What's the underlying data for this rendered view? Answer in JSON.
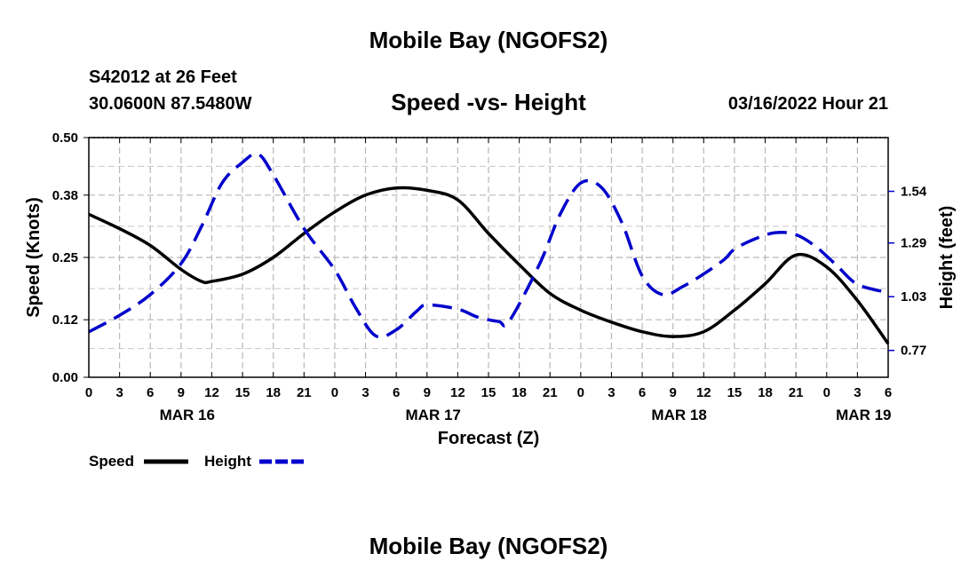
{
  "header": {
    "title": "Mobile Bay (NGOFS2)",
    "station": "S42012 at 26 Feet",
    "coordinates": "30.0600N  87.5480W",
    "subtitle": "Speed -vs- Height",
    "datetime": "03/16/2022 Hour 21"
  },
  "footer": {
    "title": "Mobile Bay (NGOFS2)"
  },
  "chart_data": {
    "type": "line",
    "xlabel": "Forecast (Z)",
    "ylabel_left": "Speed (Knots)",
    "ylabel_right": "Height (feet)",
    "x_unit": "hours from MAR 16 00Z",
    "xlim": [
      0,
      78
    ],
    "x_ticks": [
      0,
      3,
      6,
      9,
      12,
      15,
      18,
      21,
      24,
      27,
      30,
      33,
      36,
      39,
      42,
      45,
      48,
      51,
      54,
      57,
      60,
      63,
      66,
      69,
      72,
      75,
      78
    ],
    "x_tick_labels": [
      "0",
      "3",
      "6",
      "9",
      "12",
      "15",
      "18",
      "21",
      "0",
      "3",
      "6",
      "9",
      "12",
      "15",
      "18",
      "21",
      "0",
      "3",
      "6",
      "9",
      "12",
      "15",
      "18",
      "21",
      "0",
      "3",
      "6"
    ],
    "date_labels": [
      {
        "label": "MAR 16",
        "x": 9.6
      },
      {
        "label": "MAR 17",
        "x": 33.6
      },
      {
        "label": "MAR 18",
        "x": 57.6
      },
      {
        "label": "MAR 19",
        "x": 75.6
      }
    ],
    "ylim_left": [
      0,
      0.5
    ],
    "y_ticks_left": [
      0.0,
      0.12,
      0.25,
      0.38,
      0.5
    ],
    "y_tick_labels_left": [
      "0.00",
      "0.12",
      "0.25",
      "0.38",
      "0.50"
    ],
    "ylim_right": [
      0.64,
      1.8
    ],
    "y_ticks_right": [
      0.77,
      1.03,
      1.29,
      1.54
    ],
    "y_tick_labels_right": [
      "0.77",
      "1.03",
      "1.29",
      "1.54"
    ],
    "grid": true,
    "series": [
      {
        "name": "Speed",
        "axis": "left",
        "color": "#000000",
        "dash": "solid",
        "x": [
          0,
          3,
          6,
          9,
          11,
          12,
          15,
          18,
          21,
          24,
          27,
          30,
          33,
          36,
          39,
          42,
          45,
          48,
          51,
          54,
          57,
          60,
          63,
          66,
          69,
          72,
          75,
          78
        ],
        "values": [
          0.34,
          0.31,
          0.275,
          0.225,
          0.2,
          0.2,
          0.215,
          0.25,
          0.3,
          0.345,
          0.38,
          0.395,
          0.39,
          0.37,
          0.3,
          0.235,
          0.175,
          0.14,
          0.115,
          0.095,
          0.085,
          0.095,
          0.14,
          0.195,
          0.255,
          0.23,
          0.16,
          0.07
        ]
      },
      {
        "name": "Height",
        "axis": "right",
        "color": "#0000cc",
        "dash": "dashed",
        "x": [
          0,
          3,
          6,
          9,
          11,
          13,
          15,
          16.5,
          18,
          21,
          24,
          26,
          28,
          30,
          32,
          33,
          36,
          38,
          40,
          41,
          44,
          46,
          48,
          50,
          52,
          54,
          56,
          58,
          60,
          62,
          63,
          65,
          67,
          69,
          71,
          73,
          75,
          78
        ],
        "values": [
          0.86,
          0.94,
          1.04,
          1.19,
          1.37,
          1.58,
          1.68,
          1.72,
          1.62,
          1.36,
          1.16,
          0.98,
          0.84,
          0.87,
          0.96,
          0.99,
          0.97,
          0.93,
          0.91,
          0.91,
          1.19,
          1.43,
          1.58,
          1.56,
          1.39,
          1.13,
          1.04,
          1.08,
          1.14,
          1.21,
          1.26,
          1.31,
          1.34,
          1.33,
          1.27,
          1.18,
          1.09,
          1.05
        ]
      }
    ],
    "legend": [
      {
        "label": "Speed",
        "color": "#000000",
        "dash": "solid"
      },
      {
        "label": "Height",
        "color": "#0000cc",
        "dash": "dashed"
      }
    ],
    "legend_position": "bottom-left"
  }
}
